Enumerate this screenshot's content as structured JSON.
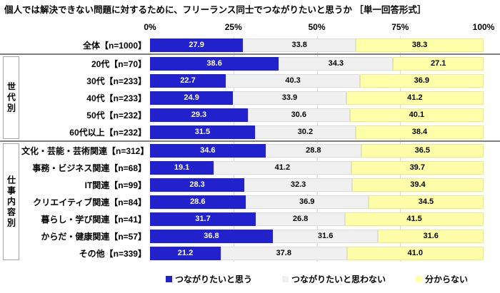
{
  "title": "個人では解決できない問題に対するために、フリーランス同士でつながりたいと思うか ［単一回答形式］",
  "axis_ticks": [
    "0%",
    "25%",
    "50%",
    "75%",
    "100%"
  ],
  "colors": {
    "agree": "#2222CC",
    "disagree": "#F0F0F0",
    "unknown": "#FFFFAA",
    "separator": "#7F7F7F",
    "gridline": "#D9D9D9"
  },
  "legend": [
    {
      "label": "つながりたいと思う",
      "color": "#2222CC"
    },
    {
      "label": "つながりたいと思わない",
      "color": "#F0F0F0"
    },
    {
      "label": "分からない",
      "color": "#FFFFAA"
    }
  ],
  "groups": [
    {
      "label": "",
      "rows": [
        {
          "label": "全体【n=1000】",
          "values": [
            27.9,
            33.8,
            38.3
          ]
        }
      ]
    },
    {
      "label": "世代別",
      "rows": [
        {
          "label": "20代【n=70】",
          "values": [
            38.6,
            34.3,
            27.1
          ]
        },
        {
          "label": "30代【n=233】",
          "values": [
            22.7,
            40.3,
            36.9
          ]
        },
        {
          "label": "40代【n=233】",
          "values": [
            24.9,
            33.9,
            41.2
          ]
        },
        {
          "label": "50代【n=232】",
          "values": [
            29.3,
            30.6,
            40.1
          ]
        },
        {
          "label": "60代以上【n=232】",
          "values": [
            31.5,
            30.2,
            38.4
          ]
        }
      ]
    },
    {
      "label": "仕事内容別",
      "rows": [
        {
          "label": "文化・芸能・芸術関連【n=312】",
          "values": [
            34.6,
            28.8,
            36.5
          ]
        },
        {
          "label": "事務・ビジネス関連【n=68】",
          "values": [
            19.1,
            41.2,
            39.7
          ]
        },
        {
          "label": "IT関連【n=99】",
          "values": [
            28.3,
            32.3,
            39.4
          ]
        },
        {
          "label": "クリエイティブ関連【n=84】",
          "values": [
            28.6,
            36.9,
            34.5
          ]
        },
        {
          "label": "暮らし・学び関連【n=41】",
          "values": [
            31.7,
            26.8,
            41.5
          ]
        },
        {
          "label": "からだ・健康関連【n=57】",
          "values": [
            36.8,
            31.6,
            31.6
          ]
        },
        {
          "label": "その他【n=339】",
          "values": [
            21.2,
            37.8,
            41.0
          ]
        }
      ]
    }
  ],
  "chart_data": {
    "type": "bar",
    "stacked": true,
    "orientation": "horizontal",
    "title": "個人では解決できない問題に対するために、フリーランス同士でつながりたいと思うか ［単一回答形式］",
    "categories": [
      "全体【n=1000】",
      "20代【n=70】",
      "30代【n=233】",
      "40代【n=233】",
      "50代【n=232】",
      "60代以上【n=232】",
      "文化・芸能・芸術関連【n=312】",
      "事務・ビジネス関連【n=68】",
      "IT関連【n=99】",
      "クリエイティブ関連【n=84】",
      "暮らし・学び関連【n=41】",
      "からだ・健康関連【n=57】",
      "その他【n=339】"
    ],
    "category_groups": [
      {
        "label": "",
        "categories_index": [
          0
        ]
      },
      {
        "label": "世代別",
        "categories_index": [
          1,
          2,
          3,
          4,
          5
        ]
      },
      {
        "label": "仕事内容別",
        "categories_index": [
          6,
          7,
          8,
          9,
          10,
          11,
          12
        ]
      }
    ],
    "series": [
      {
        "name": "つながりたいと思う",
        "color": "#2222CC",
        "values": [
          27.9,
          38.6,
          22.7,
          24.9,
          29.3,
          31.5,
          34.6,
          19.1,
          28.3,
          28.6,
          31.7,
          36.8,
          21.2
        ]
      },
      {
        "name": "つながりたいと思わない",
        "color": "#F0F0F0",
        "values": [
          33.8,
          34.3,
          40.3,
          33.9,
          30.6,
          30.2,
          28.8,
          41.2,
          32.3,
          36.9,
          26.8,
          31.6,
          37.8
        ]
      },
      {
        "name": "分からない",
        "color": "#FFFFAA",
        "values": [
          38.3,
          27.1,
          36.9,
          41.2,
          40.1,
          38.4,
          36.5,
          39.7,
          39.4,
          34.5,
          41.5,
          31.6,
          41.0
        ]
      }
    ],
    "xlim": [
      0,
      100
    ],
    "x_ticks": [
      "0%",
      "25%",
      "50%",
      "75%",
      "100%"
    ],
    "grid": true,
    "legend_position": "bottom",
    "value_labels": "inside"
  }
}
